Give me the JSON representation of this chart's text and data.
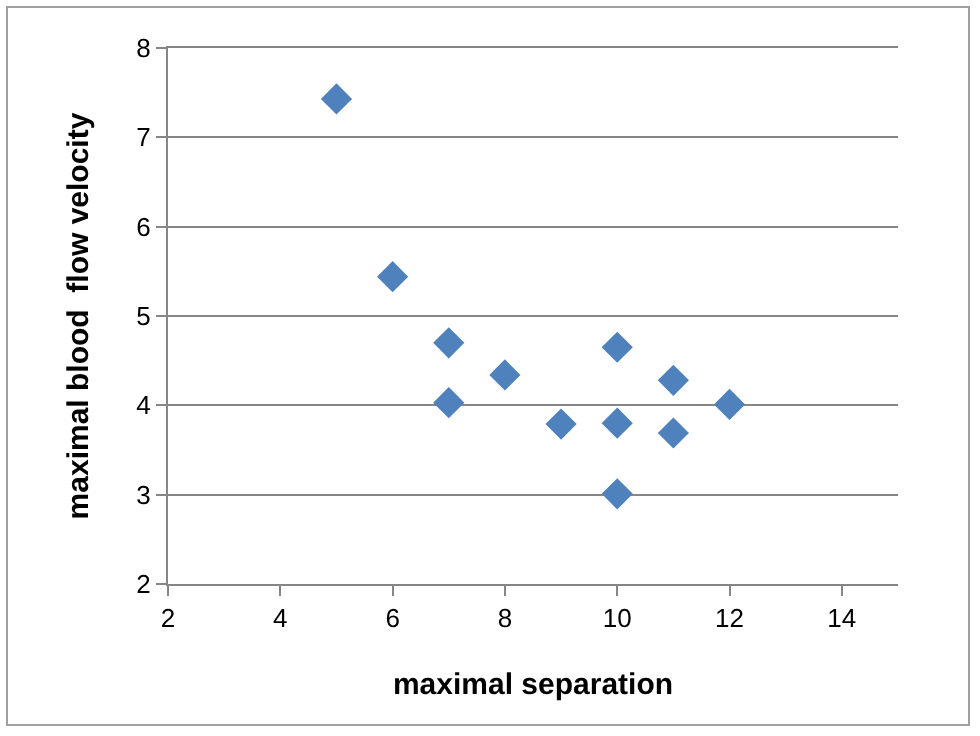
{
  "chart_data": {
    "type": "scatter",
    "xlabel": "maximal separation",
    "ylabel": "maximal blood  flow velocity",
    "x": [
      5,
      6,
      7,
      7,
      8,
      9,
      10,
      10,
      10,
      11,
      11,
      12
    ],
    "series": [
      {
        "color": "#4f81bd",
        "values": [
          7.43,
          5.44,
          4.7,
          4.03,
          4.34,
          3.79,
          4.65,
          3.8,
          3.01,
          4.28,
          3.69,
          4.01
        ]
      }
    ],
    "xlim": [
      2,
      15
    ],
    "xticks": [
      2,
      4,
      6,
      8,
      10,
      12,
      14
    ],
    "ylim": [
      2,
      8
    ],
    "yticks": [
      2,
      3,
      4,
      5,
      6,
      7,
      8
    ],
    "grid": "y",
    "marker": "diamond"
  }
}
